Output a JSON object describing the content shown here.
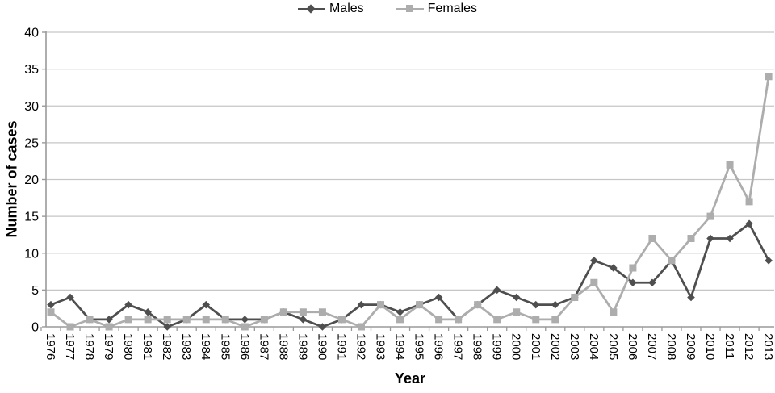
{
  "legend": {
    "males_label": "Males",
    "females_label": "Females"
  },
  "colors": {
    "males": "#4f4f4f",
    "females": "#adadad",
    "gridline": "#c6c6c6",
    "axis": "#9a9a9a",
    "text": "#000000",
    "background": "#ffffff"
  },
  "chart_data": {
    "type": "line",
    "title": "",
    "xlabel": "Year",
    "ylabel": "Number of cases",
    "x": [
      1976,
      1977,
      1978,
      1979,
      1980,
      1981,
      1982,
      1983,
      1984,
      1985,
      1986,
      1987,
      1988,
      1989,
      1990,
      1991,
      1992,
      1993,
      1994,
      1995,
      1996,
      1997,
      1998,
      1999,
      2000,
      2001,
      2002,
      2003,
      2004,
      2005,
      2006,
      2007,
      2008,
      2009,
      2010,
      2011,
      2012,
      2013
    ],
    "series": [
      {
        "name": "Males",
        "marker": "diamond",
        "color": "#4f4f4f",
        "values": [
          3,
          4,
          1,
          1,
          3,
          2,
          0,
          1,
          3,
          1,
          1,
          1,
          2,
          1,
          0,
          1,
          3,
          3,
          2,
          3,
          4,
          1,
          3,
          5,
          4,
          3,
          3,
          4,
          9,
          8,
          6,
          6,
          9,
          4,
          12,
          12,
          14,
          9
        ]
      },
      {
        "name": "Females",
        "marker": "square",
        "color": "#adadad",
        "values": [
          2,
          0,
          1,
          0,
          1,
          1,
          1,
          1,
          1,
          1,
          0,
          1,
          2,
          2,
          2,
          1,
          0,
          3,
          1,
          3,
          1,
          1,
          3,
          1,
          2,
          1,
          1,
          4,
          6,
          2,
          8,
          12,
          9,
          12,
          15,
          22,
          17,
          34
        ]
      }
    ],
    "ylim": [
      0,
      40
    ],
    "yticks": [
      0,
      5,
      10,
      15,
      20,
      25,
      30,
      35,
      40
    ],
    "grid": "horizontal",
    "legend_position": "top-center"
  }
}
